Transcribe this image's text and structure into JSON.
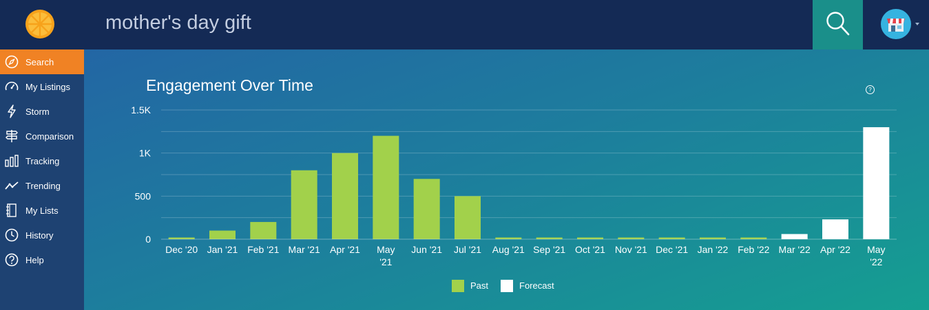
{
  "app": {
    "logo_icon": "orange-slice-icon"
  },
  "sidebar": {
    "items": [
      {
        "label": "Search",
        "icon": "compass-icon",
        "active": true
      },
      {
        "label": "My Listings",
        "icon": "speedometer-icon"
      },
      {
        "label": "Storm",
        "icon": "lightning-icon"
      },
      {
        "label": "Comparison",
        "icon": "signpost-icon"
      },
      {
        "label": "Tracking",
        "icon": "bar-chart-icon"
      },
      {
        "label": "Trending",
        "icon": "trend-line-icon"
      },
      {
        "label": "My Lists",
        "icon": "notebook-icon"
      },
      {
        "label": "History",
        "icon": "clock-icon"
      },
      {
        "label": "Help",
        "icon": "question-icon"
      }
    ]
  },
  "header": {
    "search_value": "mother's day gift",
    "search_icon": "magnifier-icon",
    "avatar_icon": "shop-avatar-icon"
  },
  "colors": {
    "past": "#a2d14b",
    "forecast": "#ffffff",
    "accent": "#f08224"
  },
  "chart_data": {
    "type": "bar",
    "title": "Engagement Over Time",
    "help_label": "?",
    "xlabel": "",
    "ylabel": "",
    "ylim": [
      0,
      1500
    ],
    "yticks": [
      {
        "value": 0,
        "label": "0"
      },
      {
        "value": 500,
        "label": "500"
      },
      {
        "value": 1000,
        "label": "1K"
      },
      {
        "value": 1500,
        "label": "1.5K"
      }
    ],
    "gridlines": [
      250,
      500,
      750,
      1000,
      1250,
      1500
    ],
    "categories": [
      [
        "Dec '20"
      ],
      [
        "Jan '21"
      ],
      [
        "Feb '21"
      ],
      [
        "Mar '21"
      ],
      [
        "Apr '21"
      ],
      [
        "May",
        "'21"
      ],
      [
        "Jun '21"
      ],
      [
        "Jul '21"
      ],
      [
        "Aug '21"
      ],
      [
        "Sep '21"
      ],
      [
        "Oct '21"
      ],
      [
        "Nov '21"
      ],
      [
        "Dec '21"
      ],
      [
        "Jan '22"
      ],
      [
        "Feb '22"
      ],
      [
        "Mar '22"
      ],
      [
        "Apr '22"
      ],
      [
        "May",
        "'22"
      ]
    ],
    "series": [
      {
        "name": "Past",
        "values": [
          20,
          100,
          200,
          800,
          1000,
          1200,
          700,
          500,
          20,
          20,
          20,
          20,
          20,
          20,
          20,
          null,
          null,
          null
        ]
      },
      {
        "name": "Forecast",
        "values": [
          null,
          null,
          null,
          null,
          null,
          null,
          null,
          null,
          null,
          null,
          null,
          null,
          null,
          null,
          null,
          60,
          230,
          1300
        ]
      }
    ],
    "legend": [
      {
        "label": "Past",
        "position": "bottom-center"
      },
      {
        "label": "Forecast",
        "position": "bottom-center"
      }
    ]
  }
}
